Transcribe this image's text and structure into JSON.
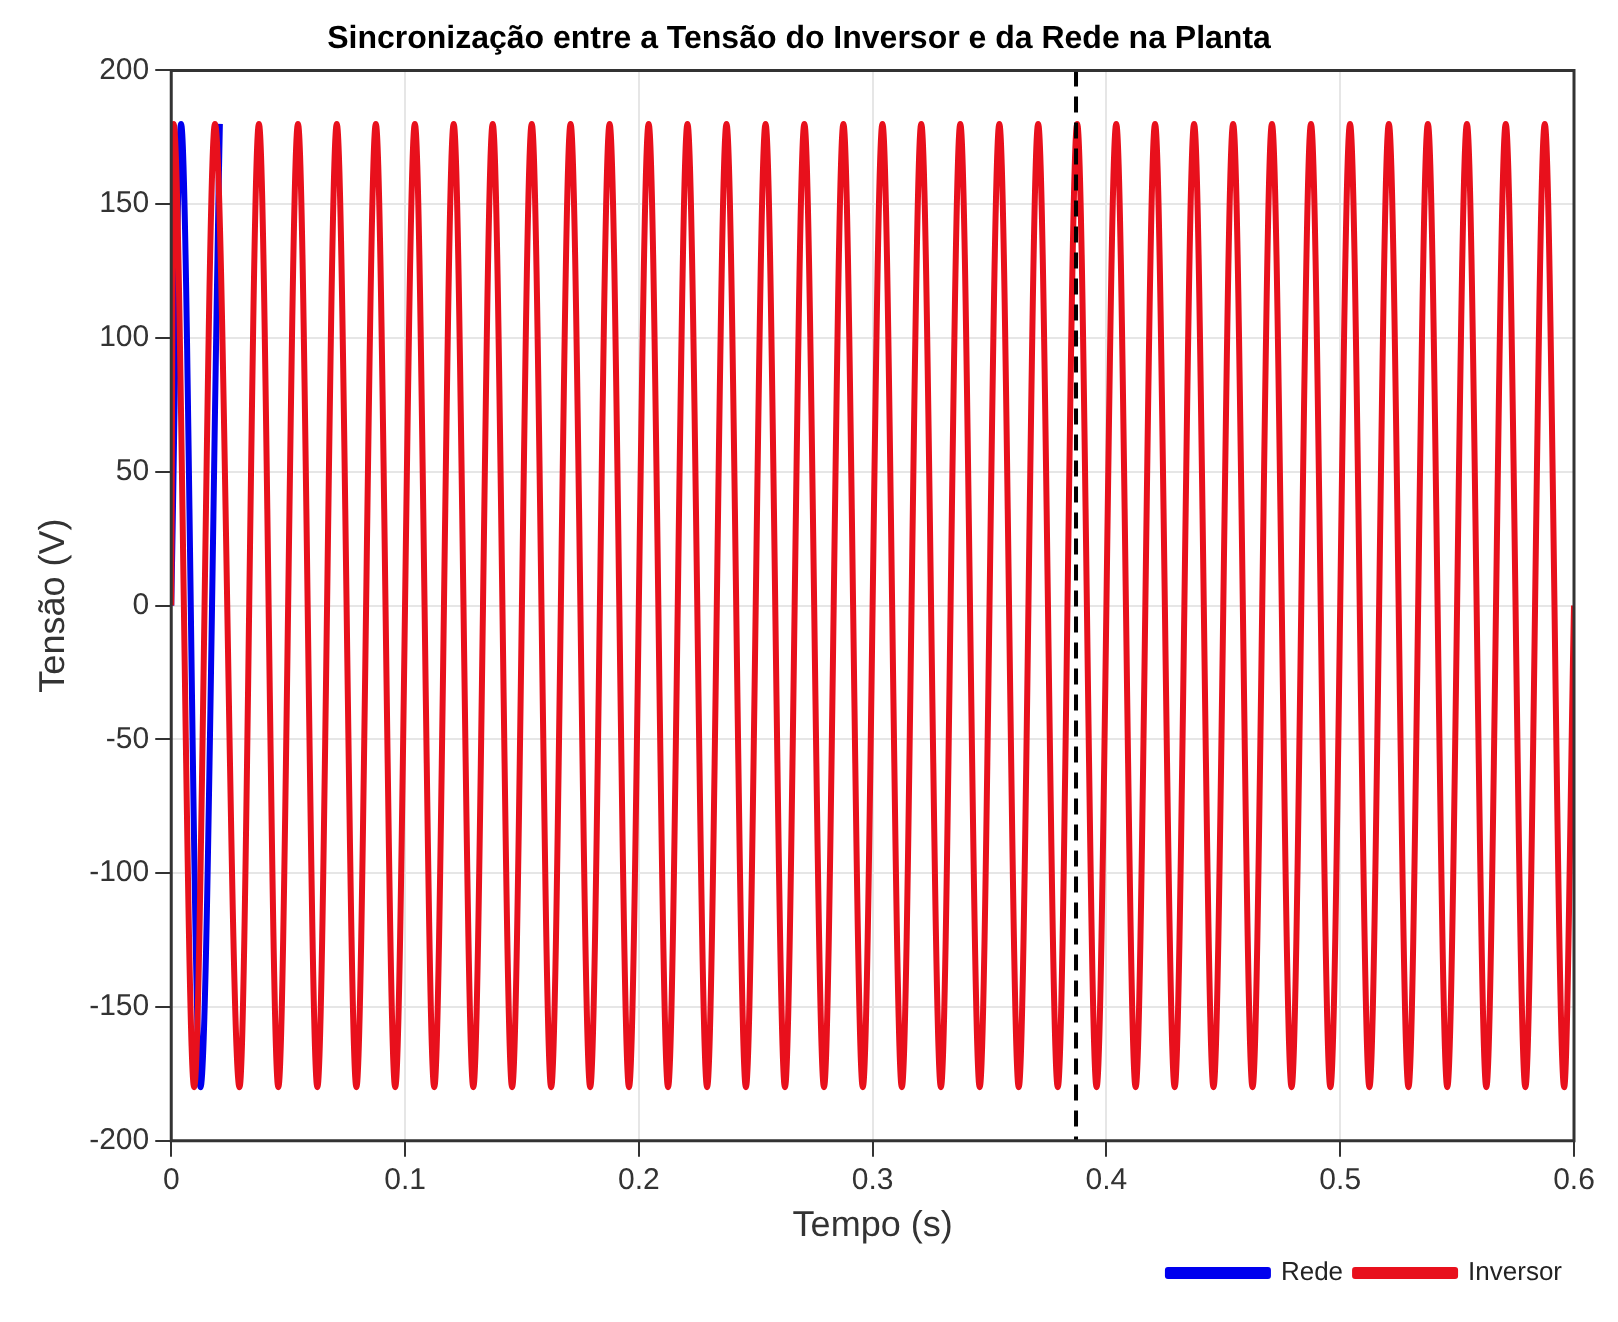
{
  "chart_data": {
    "type": "line",
    "title": "Sincronização entre a Tensão do Inversor e da Rede na Planta",
    "xlabel": "Tempo (s)",
    "ylabel": "Tensão (V)",
    "xlim": [
      0,
      0.6
    ],
    "xticks": [
      0,
      0.1,
      0.2,
      0.3,
      0.4,
      0.5,
      0.6
    ],
    "ylim": [
      -200,
      200
    ],
    "yticks": [
      -200,
      -150,
      -100,
      -50,
      0,
      50,
      100,
      150,
      200
    ],
    "grid": true,
    "legend": "bottom right",
    "marker": "none",
    "line_style": "solid",
    "ref_lines": [
      {
        "axis": "x",
        "value": 0.387,
        "color": "#000000",
        "line_style": "dashed"
      }
    ],
    "series": [
      {
        "name": "Rede",
        "color": "#0000ee",
        "x": [
          0,
          0.0042,
          0.0125,
          0.0208
        ],
        "values": [
          0,
          180,
          -180,
          180
        ]
      },
      {
        "name": "Inversor",
        "color": "#e8101c",
        "x": [
          0,
          0.001,
          0.0098,
          0.0187,
          0.0292,
          0.0375,
          0.0458,
          0.0542,
          0.0625,
          0.0708,
          0.0792,
          0.0875,
          0.0958,
          0.1042,
          0.1125,
          0.1208,
          0.1292,
          0.1375,
          0.1458,
          0.1542,
          0.1625,
          0.1708,
          0.1792,
          0.1875,
          0.1958,
          0.2042,
          0.2125,
          0.2208,
          0.2292,
          0.2375,
          0.2458,
          0.2542,
          0.2625,
          0.2708,
          0.2792,
          0.2875,
          0.2958,
          0.3042,
          0.3125,
          0.3208,
          0.3292,
          0.3375,
          0.3458,
          0.3542,
          0.3625,
          0.3708,
          0.3792,
          0.3875,
          0.3958,
          0.4042,
          0.4125,
          0.4208,
          0.4292,
          0.4375,
          0.4458,
          0.4542,
          0.4625,
          0.4708,
          0.4792,
          0.4875,
          0.4958,
          0.5042,
          0.5125,
          0.5208,
          0.5292,
          0.5375,
          0.5458,
          0.5542,
          0.5625,
          0.5708,
          0.5792,
          0.5875,
          0.5958,
          0.6
        ],
        "values": [
          0,
          180,
          -180,
          180,
          -180,
          180,
          -180,
          180,
          -180,
          180,
          -180,
          180,
          -180,
          180,
          -180,
          180,
          -180,
          180,
          -180,
          180,
          -180,
          180,
          -180,
          180,
          -180,
          180,
          -180,
          180,
          -180,
          180,
          -180,
          180,
          -180,
          180,
          -180,
          180,
          -180,
          180,
          -180,
          180,
          -180,
          180,
          -180,
          180,
          -180,
          180,
          -180,
          180,
          -180,
          180,
          -180,
          180,
          -180,
          180,
          -180,
          180,
          -180,
          180,
          -180,
          180,
          -180,
          180,
          -180,
          180,
          -180,
          180,
          -180,
          180,
          -180,
          180,
          -180,
          180,
          -180,
          0
        ]
      }
    ]
  }
}
